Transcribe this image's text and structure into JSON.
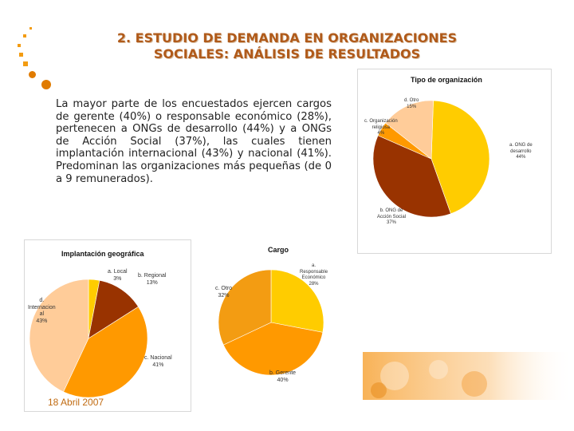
{
  "slide": {
    "title_line1": "2. ESTUDIO DE DEMANDA EN ORGANIZACIONES",
    "title_line2": "SOCIALES: ANÁLISIS DE RESULTADOS",
    "body": "La mayor parte de los encuestados ejercen cargos de gerente (40%) o responsable económico (28%), pertenecen a ONGs de desarrollo (44%) y a ONGs de Acción Social (37%), las cuales tienen implantación internacional (43%) y nacional (41%). Predominan las organizaciones más pequeñas (de 0 a 9 remunerados).",
    "date": "18 Abril 2007"
  },
  "colors": {
    "accent_orange": "#f39c12",
    "title_brown": "#b05a1a",
    "yellow": "#ffcc00",
    "orange": "#ff9900",
    "brown": "#993300",
    "peach": "#ffcc99"
  },
  "chart_data": [
    {
      "type": "pie",
      "title": "Tipo de organización",
      "categories": [
        "a. ONG de desarrollo",
        "b. ONG de Acción Social",
        "c. Organización religiosa",
        "d. Otro"
      ],
      "values": [
        44,
        37,
        4,
        15
      ],
      "labels": [
        {
          "line1": "a. ONG de",
          "line2": "desarrollo",
          "line3": "44%"
        },
        {
          "line1": "b. ONG de",
          "line2": "Acción Social",
          "line3": "37%"
        },
        {
          "line1": "c. Organización",
          "line2": "religiosa",
          "line3": "4%"
        },
        {
          "line1": "d. Otro",
          "line2": "15%"
        }
      ]
    },
    {
      "type": "pie",
      "title": "Implantación geográfica",
      "categories": [
        "a. Local",
        "b. Regional",
        "c. Nacional",
        "d. Internacional"
      ],
      "values": [
        3,
        13,
        41,
        43
      ],
      "labels": [
        {
          "line1": "a. Local",
          "line2": "3%"
        },
        {
          "line1": "b. Regional",
          "line2": "13%"
        },
        {
          "line1": "c. Nacional",
          "line2": "41%"
        },
        {
          "line1": "d.",
          "line2": "Internacion",
          "line3": "al",
          "line4": "43%"
        }
      ]
    },
    {
      "type": "pie",
      "title": "Cargo",
      "categories": [
        "a. Responsable Económico",
        "b. Gerente",
        "c. Otro"
      ],
      "values": [
        28,
        40,
        32
      ],
      "labels": [
        {
          "line1": "a.",
          "line2": "Responsable",
          "line3": "Económico",
          "line4": "28%"
        },
        {
          "line1": "b. Gerente",
          "line2": "40%"
        },
        {
          "line1": "c. Otro",
          "line2": "32%"
        }
      ]
    }
  ]
}
